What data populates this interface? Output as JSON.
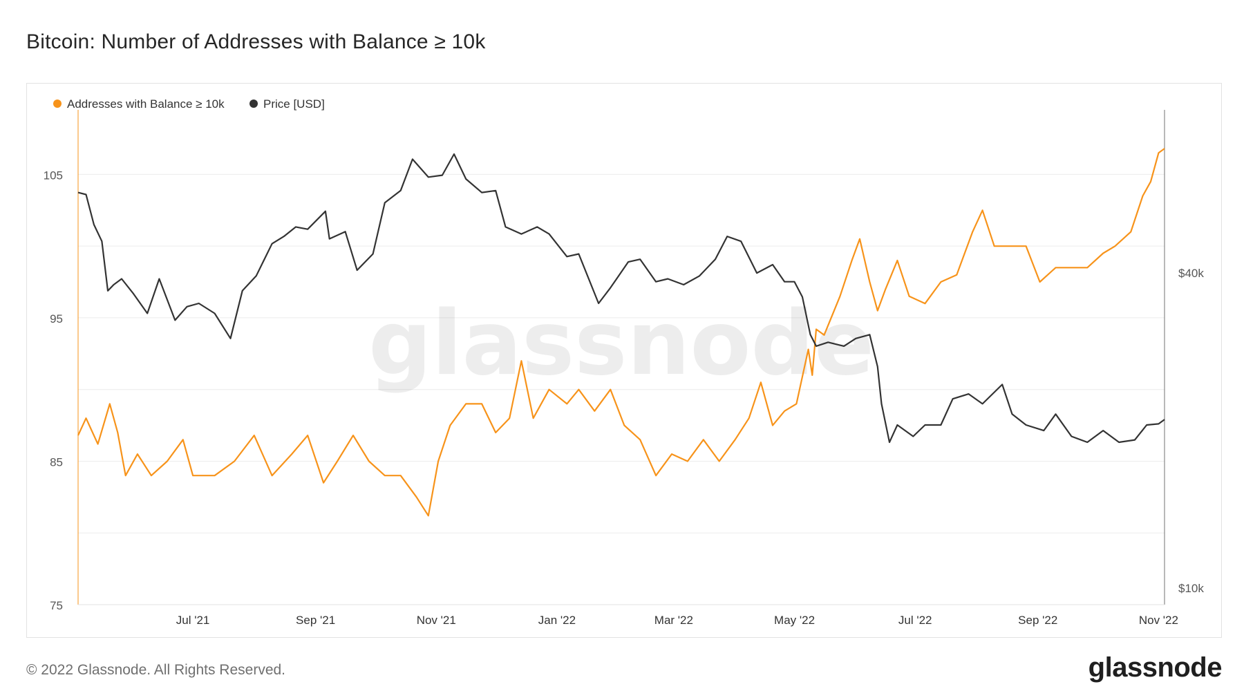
{
  "header": {
    "title": "Bitcoin: Number of Addresses with Balance ≥ 10k"
  },
  "footer": {
    "copyright": "© 2022 Glassnode. All Rights Reserved.",
    "logo_text": "glassnode"
  },
  "watermark": "glassnode",
  "colors": {
    "addresses": "#f7931a",
    "price": "#333333",
    "grid": "#ececec",
    "axis_text": "#555555"
  },
  "chart_data": {
    "type": "line",
    "title": "Bitcoin: Number of Addresses with Balance ≥ 10k",
    "legend_position": "top-left",
    "grid": true,
    "x_ticks": [
      "Jul '21",
      "Sep '21",
      "Nov '21",
      "Jan '22",
      "Mar '22",
      "May '22",
      "Jul '22",
      "Sep '22",
      "Nov '22"
    ],
    "y_left": {
      "ticks": [
        "75",
        "85",
        "95",
        "105"
      ],
      "ylim": [
        75,
        109.5
      ]
    },
    "y_right": {
      "ticks": [
        "$10k",
        "$40k"
      ],
      "scale": "log",
      "ylim": [
        9300,
        82000
      ]
    },
    "series": [
      {
        "name": "Addresses with Balance ≥ 10k",
        "axis": "left",
        "color": "#f7931a",
        "points": [
          [
            "2021-05-04",
            86.8
          ],
          [
            "2021-05-08",
            88
          ],
          [
            "2021-05-14",
            86.2
          ],
          [
            "2021-05-20",
            89
          ],
          [
            "2021-05-24",
            87
          ],
          [
            "2021-05-28",
            84
          ],
          [
            "2021-06-03",
            85.5
          ],
          [
            "2021-06-10",
            84
          ],
          [
            "2021-06-18",
            85
          ],
          [
            "2021-06-26",
            86.5
          ],
          [
            "2021-07-01",
            84
          ],
          [
            "2021-07-12",
            84
          ],
          [
            "2021-07-22",
            85
          ],
          [
            "2021-08-01",
            86.8
          ],
          [
            "2021-08-10",
            84
          ],
          [
            "2021-08-20",
            85.5
          ],
          [
            "2021-08-28",
            86.8
          ],
          [
            "2021-09-05",
            83.5
          ],
          [
            "2021-09-12",
            85
          ],
          [
            "2021-09-20",
            86.8
          ],
          [
            "2021-09-28",
            85
          ],
          [
            "2021-10-06",
            84
          ],
          [
            "2021-10-14",
            84
          ],
          [
            "2021-10-22",
            82.5
          ],
          [
            "2021-10-28",
            81.2
          ],
          [
            "2021-11-02",
            85
          ],
          [
            "2021-11-08",
            87.5
          ],
          [
            "2021-11-16",
            89
          ],
          [
            "2021-11-24",
            89
          ],
          [
            "2021-12-01",
            87
          ],
          [
            "2021-12-08",
            88
          ],
          [
            "2021-12-14",
            92
          ],
          [
            "2021-12-20",
            88
          ],
          [
            "2021-12-28",
            90
          ],
          [
            "2022-01-06",
            89
          ],
          [
            "2022-01-12",
            90
          ],
          [
            "2022-01-20",
            88.5
          ],
          [
            "2022-01-28",
            90
          ],
          [
            "2022-02-04",
            87.5
          ],
          [
            "2022-02-12",
            86.5
          ],
          [
            "2022-02-20",
            84
          ],
          [
            "2022-02-28",
            85.5
          ],
          [
            "2022-03-08",
            85
          ],
          [
            "2022-03-16",
            86.5
          ],
          [
            "2022-03-24",
            85
          ],
          [
            "2022-04-01",
            86.5
          ],
          [
            "2022-04-08",
            88
          ],
          [
            "2022-04-14",
            90.5
          ],
          [
            "2022-04-20",
            87.5
          ],
          [
            "2022-04-26",
            88.5
          ],
          [
            "2022-05-02",
            89
          ],
          [
            "2022-05-08",
            92.8
          ],
          [
            "2022-05-10",
            91
          ],
          [
            "2022-05-12",
            94.2
          ],
          [
            "2022-05-16",
            93.8
          ],
          [
            "2022-05-24",
            96.5
          ],
          [
            "2022-05-30",
            99
          ],
          [
            "2022-06-03",
            100.5
          ],
          [
            "2022-06-08",
            97.5
          ],
          [
            "2022-06-12",
            95.5
          ],
          [
            "2022-06-16",
            97
          ],
          [
            "2022-06-22",
            99
          ],
          [
            "2022-06-28",
            96.5
          ],
          [
            "2022-07-06",
            96
          ],
          [
            "2022-07-14",
            97.5
          ],
          [
            "2022-07-22",
            98
          ],
          [
            "2022-07-30",
            101
          ],
          [
            "2022-08-04",
            102.5
          ],
          [
            "2022-08-10",
            100
          ],
          [
            "2022-08-18",
            100
          ],
          [
            "2022-08-26",
            100
          ],
          [
            "2022-09-02",
            97.5
          ],
          [
            "2022-09-10",
            98.5
          ],
          [
            "2022-09-18",
            98.5
          ],
          [
            "2022-09-26",
            98.5
          ],
          [
            "2022-10-04",
            99.5
          ],
          [
            "2022-10-10",
            100
          ],
          [
            "2022-10-18",
            101
          ],
          [
            "2022-10-24",
            103.5
          ],
          [
            "2022-10-28",
            104.5
          ],
          [
            "2022-11-01",
            106.5
          ],
          [
            "2022-11-04",
            106.8
          ]
        ]
      },
      {
        "name": "Price [USD]",
        "axis": "right",
        "color": "#333333",
        "points": [
          [
            "2021-05-04",
            57000
          ],
          [
            "2021-05-08",
            56500
          ],
          [
            "2021-05-12",
            49500
          ],
          [
            "2021-05-16",
            46000
          ],
          [
            "2021-05-19",
            37000
          ],
          [
            "2021-05-22",
            38000
          ],
          [
            "2021-05-26",
            39000
          ],
          [
            "2021-06-01",
            36500
          ],
          [
            "2021-06-08",
            33500
          ],
          [
            "2021-06-14",
            39000
          ],
          [
            "2021-06-22",
            32500
          ],
          [
            "2021-06-28",
            34500
          ],
          [
            "2021-07-04",
            35000
          ],
          [
            "2021-07-12",
            33500
          ],
          [
            "2021-07-20",
            30000
          ],
          [
            "2021-07-26",
            37000
          ],
          [
            "2021-08-02",
            39500
          ],
          [
            "2021-08-10",
            45500
          ],
          [
            "2021-08-16",
            47000
          ],
          [
            "2021-08-22",
            49000
          ],
          [
            "2021-08-28",
            48500
          ],
          [
            "2021-09-06",
            52500
          ],
          [
            "2021-09-08",
            46500
          ],
          [
            "2021-09-16",
            48000
          ],
          [
            "2021-09-22",
            40500
          ],
          [
            "2021-09-30",
            43500
          ],
          [
            "2021-10-06",
            54500
          ],
          [
            "2021-10-14",
            57500
          ],
          [
            "2021-10-20",
            66000
          ],
          [
            "2021-10-28",
            61000
          ],
          [
            "2021-11-04",
            61500
          ],
          [
            "2021-11-10",
            67500
          ],
          [
            "2021-11-16",
            60500
          ],
          [
            "2021-11-24",
            57000
          ],
          [
            "2021-12-01",
            57500
          ],
          [
            "2021-12-06",
            49000
          ],
          [
            "2021-12-14",
            47500
          ],
          [
            "2021-12-22",
            49000
          ],
          [
            "2021-12-28",
            47500
          ],
          [
            "2022-01-06",
            43000
          ],
          [
            "2022-01-12",
            43500
          ],
          [
            "2022-01-22",
            35000
          ],
          [
            "2022-01-28",
            37500
          ],
          [
            "2022-02-06",
            42000
          ],
          [
            "2022-02-12",
            42500
          ],
          [
            "2022-02-20",
            38500
          ],
          [
            "2022-02-26",
            39000
          ],
          [
            "2022-03-06",
            38000
          ],
          [
            "2022-03-14",
            39500
          ],
          [
            "2022-03-22",
            42500
          ],
          [
            "2022-03-28",
            47000
          ],
          [
            "2022-04-04",
            46000
          ],
          [
            "2022-04-12",
            40000
          ],
          [
            "2022-04-20",
            41500
          ],
          [
            "2022-04-26",
            38500
          ],
          [
            "2022-05-01",
            38500
          ],
          [
            "2022-05-05",
            36000
          ],
          [
            "2022-05-09",
            30500
          ],
          [
            "2022-05-12",
            29000
          ],
          [
            "2022-05-18",
            29500
          ],
          [
            "2022-05-26",
            29000
          ],
          [
            "2022-06-01",
            30000
          ],
          [
            "2022-06-08",
            30500
          ],
          [
            "2022-06-12",
            26500
          ],
          [
            "2022-06-14",
            22500
          ],
          [
            "2022-06-18",
            19000
          ],
          [
            "2022-06-22",
            20500
          ],
          [
            "2022-06-30",
            19500
          ],
          [
            "2022-07-06",
            20500
          ],
          [
            "2022-07-14",
            20500
          ],
          [
            "2022-07-20",
            23000
          ],
          [
            "2022-07-28",
            23500
          ],
          [
            "2022-08-04",
            22500
          ],
          [
            "2022-08-14",
            24500
          ],
          [
            "2022-08-19",
            21500
          ],
          [
            "2022-08-26",
            20500
          ],
          [
            "2022-09-04",
            20000
          ],
          [
            "2022-09-10",
            21500
          ],
          [
            "2022-09-18",
            19500
          ],
          [
            "2022-09-26",
            19000
          ],
          [
            "2022-10-04",
            20000
          ],
          [
            "2022-10-12",
            19000
          ],
          [
            "2022-10-20",
            19200
          ],
          [
            "2022-10-26",
            20500
          ],
          [
            "2022-11-01",
            20600
          ],
          [
            "2022-11-04",
            21000
          ]
        ]
      }
    ]
  }
}
